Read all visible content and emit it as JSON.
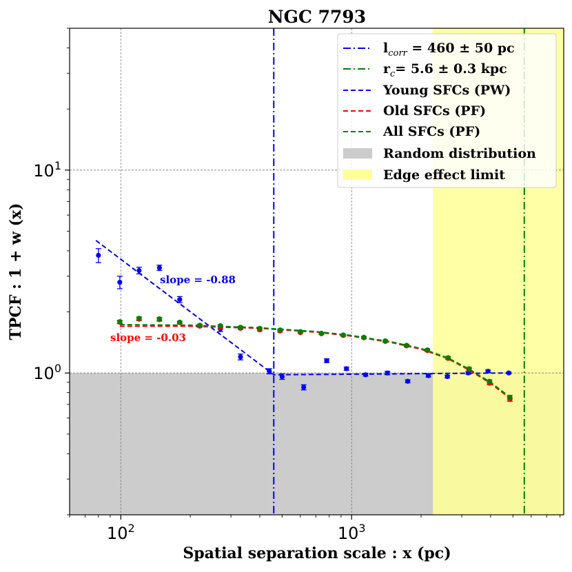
{
  "chart_data": {
    "type": "scatter",
    "title": "NGC 7793",
    "xlabel": "Spatial separation scale : x (pc)",
    "ylabel": "TPCF : 1 + w (x)",
    "xscale": "log",
    "yscale": "log",
    "xlim": [
      60,
      8300
    ],
    "ylim": [
      0.2,
      50
    ],
    "grid": true,
    "legend_position": "top-right",
    "x_ticks": [
      {
        "value": 100,
        "base": "10",
        "exp": "2"
      },
      {
        "value": 1000,
        "base": "10",
        "exp": "3"
      }
    ],
    "y_ticks": [
      {
        "value": 1,
        "base": "10",
        "exp": "0"
      },
      {
        "value": 10,
        "base": "10",
        "exp": "1"
      }
    ],
    "colors": {
      "young": "#0000ff",
      "old": "#ff0000",
      "all": "#008000",
      "random_fill": "#cccccc",
      "edge_fill": "#ffff99"
    },
    "regions": {
      "random_distribution_ymax": 1.0,
      "edge_effect_xmin": 2250
    },
    "vertical_lines": {
      "l_corr_x": 460,
      "r_c_x": 5600
    },
    "legend": {
      "lcorr_main": "l",
      "lcorr_sub": "corr",
      "lcorr_rest": " = 460 ± 50 pc",
      "rc_main": "r",
      "rc_sub": "c",
      "rc_rest": "= 5.6 ± 0.3 kpc",
      "young": "Young SFCs (PW)",
      "old": "Old SFCs (PF)",
      "all": "All SFCs (PF)",
      "random": "Random distribution",
      "edge": "Edge effect limit"
    },
    "annotations": {
      "young_slope": "slope = -0.88",
      "old_slope": "slope = -0.03"
    },
    "series": [
      {
        "name": "Young SFCs (PW)",
        "color": "#0000ff",
        "points": [
          {
            "x": 80,
            "y": 3.8,
            "err": 0.3
          },
          {
            "x": 99,
            "y": 2.8,
            "err": 0.2
          },
          {
            "x": 120,
            "y": 3.2,
            "err": 0.12
          },
          {
            "x": 147,
            "y": 3.3,
            "err": 0.1
          },
          {
            "x": 180,
            "y": 2.3,
            "err": 0.08
          },
          {
            "x": 270,
            "y": 1.65,
            "err": 0.05
          },
          {
            "x": 330,
            "y": 1.2,
            "err": 0.04
          },
          {
            "x": 440,
            "y": 1.02,
            "err": 0.03
          },
          {
            "x": 500,
            "y": 0.96,
            "err": 0.03
          },
          {
            "x": 620,
            "y": 0.85,
            "err": 0.025
          },
          {
            "x": 780,
            "y": 1.15,
            "err": 0.025
          },
          {
            "x": 950,
            "y": 1.05,
            "err": 0.02
          },
          {
            "x": 1150,
            "y": 0.98,
            "err": 0.015
          },
          {
            "x": 1430,
            "y": 1.0,
            "err": 0.02
          },
          {
            "x": 1750,
            "y": 0.91,
            "err": 0.015
          },
          {
            "x": 2150,
            "y": 0.97,
            "err": 0.015
          },
          {
            "x": 2600,
            "y": 0.96,
            "err": 0.015
          },
          {
            "x": 3200,
            "y": 1.0,
            "err": 0.015
          },
          {
            "x": 3900,
            "y": 1.02,
            "err": 0.015
          },
          {
            "x": 4800,
            "y": 1.0,
            "err": 0.01
          }
        ],
        "fit": [
          [
            78,
            4.5
          ],
          [
            460,
            0.98
          ],
          [
            4800,
            1.0
          ]
        ]
      },
      {
        "name": "Old SFCs (PF)",
        "color": "#ff0000",
        "points": [
          {
            "x": 99,
            "y": 1.78,
            "err": 0.03
          },
          {
            "x": 120,
            "y": 1.84,
            "err": 0.03
          },
          {
            "x": 147,
            "y": 1.83,
            "err": 0.03
          },
          {
            "x": 180,
            "y": 1.77,
            "err": 0.02
          },
          {
            "x": 220,
            "y": 1.7,
            "err": 0.02
          },
          {
            "x": 270,
            "y": 1.68,
            "err": 0.02
          },
          {
            "x": 330,
            "y": 1.66,
            "err": 0.02
          },
          {
            "x": 400,
            "y": 1.63,
            "err": 0.02
          },
          {
            "x": 490,
            "y": 1.61,
            "err": 0.02
          },
          {
            "x": 600,
            "y": 1.58,
            "err": 0.015
          },
          {
            "x": 740,
            "y": 1.56,
            "err": 0.015
          },
          {
            "x": 920,
            "y": 1.53,
            "err": 0.015
          },
          {
            "x": 1130,
            "y": 1.49,
            "err": 0.015
          },
          {
            "x": 1400,
            "y": 1.43,
            "err": 0.015
          },
          {
            "x": 1730,
            "y": 1.36,
            "err": 0.015
          },
          {
            "x": 2130,
            "y": 1.29,
            "err": 0.015
          },
          {
            "x": 2620,
            "y": 1.18,
            "err": 0.015
          },
          {
            "x": 3230,
            "y": 1.04,
            "err": 0.015
          },
          {
            "x": 3960,
            "y": 0.89,
            "err": 0.015
          },
          {
            "x": 4850,
            "y": 0.74,
            "err": 0.015
          }
        ],
        "fit": [
          [
            99,
            1.7
          ],
          [
            200,
            1.7
          ],
          [
            400,
            1.66
          ],
          [
            700,
            1.59
          ],
          [
            1000,
            1.52
          ],
          [
            1500,
            1.41
          ],
          [
            2000,
            1.31
          ],
          [
            2600,
            1.18
          ],
          [
            3200,
            1.04
          ],
          [
            4000,
            0.89
          ],
          [
            4850,
            0.75
          ]
        ]
      },
      {
        "name": "All SFCs (PF)",
        "color": "#008000",
        "points": [
          {
            "x": 99,
            "y": 1.79,
            "err": 0.03
          },
          {
            "x": 120,
            "y": 1.86,
            "err": 0.03
          },
          {
            "x": 147,
            "y": 1.85,
            "err": 0.03
          },
          {
            "x": 180,
            "y": 1.78,
            "err": 0.02
          },
          {
            "x": 220,
            "y": 1.72,
            "err": 0.02
          },
          {
            "x": 270,
            "y": 1.71,
            "err": 0.02
          },
          {
            "x": 330,
            "y": 1.68,
            "err": 0.02
          },
          {
            "x": 400,
            "y": 1.66,
            "err": 0.02
          },
          {
            "x": 490,
            "y": 1.63,
            "err": 0.02
          },
          {
            "x": 600,
            "y": 1.6,
            "err": 0.015
          },
          {
            "x": 740,
            "y": 1.57,
            "err": 0.015
          },
          {
            "x": 920,
            "y": 1.54,
            "err": 0.015
          },
          {
            "x": 1130,
            "y": 1.5,
            "err": 0.015
          },
          {
            "x": 1400,
            "y": 1.44,
            "err": 0.015
          },
          {
            "x": 1730,
            "y": 1.37,
            "err": 0.015
          },
          {
            "x": 2130,
            "y": 1.3,
            "err": 0.015
          },
          {
            "x": 2620,
            "y": 1.19,
            "err": 0.015
          },
          {
            "x": 3230,
            "y": 1.05,
            "err": 0.015
          },
          {
            "x": 3960,
            "y": 0.91,
            "err": 0.015
          },
          {
            "x": 4850,
            "y": 0.76,
            "err": 0.015
          }
        ],
        "fit": [
          [
            99,
            1.73
          ],
          [
            200,
            1.72
          ],
          [
            400,
            1.67
          ],
          [
            700,
            1.6
          ],
          [
            1000,
            1.53
          ],
          [
            1500,
            1.42
          ],
          [
            2000,
            1.32
          ],
          [
            2600,
            1.19
          ],
          [
            3200,
            1.05
          ],
          [
            4000,
            0.9
          ],
          [
            4850,
            0.76
          ]
        ]
      }
    ]
  }
}
